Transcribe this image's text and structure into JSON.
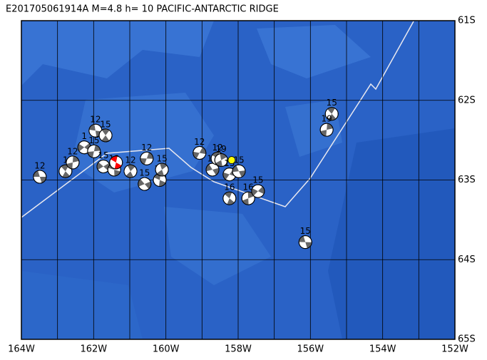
{
  "map": {
    "title": "E201705061914A  M=4.8  h= 10  PACIFIC-ANTARCTIC RIDGE",
    "xlim": [
      -164,
      -152
    ],
    "ylim": [
      -65,
      -61
    ],
    "xticks": [
      {
        "value": -164,
        "label": "164W"
      },
      {
        "value": -162,
        "label": "162W"
      },
      {
        "value": -160,
        "label": "160W"
      },
      {
        "value": -158,
        "label": "158W"
      },
      {
        "value": -156,
        "label": "156W"
      },
      {
        "value": -154,
        "label": "154W"
      },
      {
        "value": -152,
        "label": "152W"
      }
    ],
    "yticks": [
      {
        "value": -61,
        "label": "61S"
      },
      {
        "value": -62,
        "label": "62S"
      },
      {
        "value": -63,
        "label": "63S"
      },
      {
        "value": -64,
        "label": "64S"
      },
      {
        "value": -65,
        "label": "65S"
      }
    ],
    "grid_step": 1,
    "events": [
      {
        "lon": -163.49,
        "lat": -62.96,
        "label": 12
      },
      {
        "lon": -162.78,
        "lat": -62.89,
        "label": 1
      },
      {
        "lon": -162.58,
        "lat": -62.78,
        "label": 12
      },
      {
        "lon": -162.26,
        "lat": -62.59,
        "label": 1
      },
      {
        "lon": -161.95,
        "lat": -62.38,
        "label": 12
      },
      {
        "lon": -161.67,
        "lat": -62.44,
        "label": 15
      },
      {
        "lon": -161.99,
        "lat": -62.64,
        "label": 15
      },
      {
        "lon": -161.73,
        "lat": -62.83,
        "label": 15
      },
      {
        "lon": -161.43,
        "lat": -62.87,
        "label": 12
      },
      {
        "lon": -160.98,
        "lat": -62.89,
        "label": 12
      },
      {
        "lon": -160.53,
        "lat": -62.73,
        "label": 12
      },
      {
        "lon": -160.59,
        "lat": -63.05,
        "label": 15
      },
      {
        "lon": -160.17,
        "lat": -63.0,
        "label": 15
      },
      {
        "lon": -160.11,
        "lat": -62.87,
        "label": 15
      },
      {
        "lon": -159.07,
        "lat": -62.66,
        "label": 12
      },
      {
        "lon": -158.71,
        "lat": -62.87,
        "label": 13
      },
      {
        "lon": -158.57,
        "lat": -62.73,
        "label": 12
      },
      {
        "lon": -158.47,
        "lat": -62.75,
        "label": 19
      },
      {
        "lon": -158.24,
        "lat": -62.93,
        "label": 15
      },
      {
        "lon": -157.98,
        "lat": -62.89,
        "label": 15
      },
      {
        "lon": -158.24,
        "lat": -63.23,
        "label": 16
      },
      {
        "lon": -157.72,
        "lat": -63.23,
        "label": 16
      },
      {
        "lon": -157.45,
        "lat": -63.14,
        "label": 15
      },
      {
        "lon": -156.14,
        "lat": -63.78,
        "label": 15
      },
      {
        "lon": -155.41,
        "lat": -62.17,
        "label": 15
      },
      {
        "lon": -155.55,
        "lat": -62.37,
        "label": 19
      }
    ],
    "main_event": {
      "lon": -161.38,
      "lat": -62.78,
      "color": "#ff0000"
    },
    "epicenter": {
      "lon": -158.18,
      "lat": -62.75,
      "color": "#ffff00"
    }
  }
}
